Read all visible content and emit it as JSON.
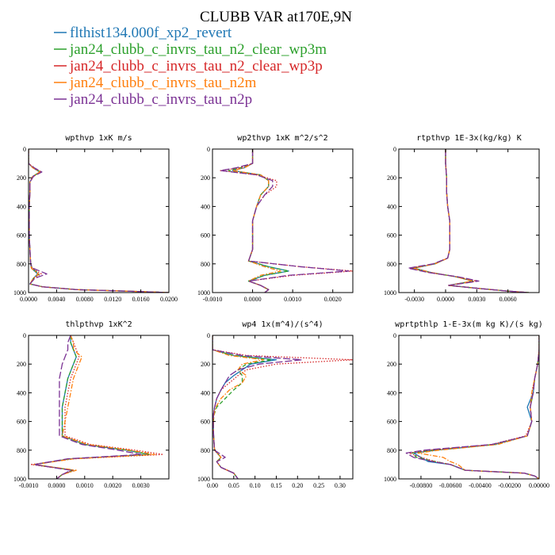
{
  "figure": {
    "title": "CLUBB VAR at170E,9N"
  },
  "legend": [
    {
      "label": "flthist134.000f_xp2_revert",
      "color": "#1f77b4",
      "dash": "solid"
    },
    {
      "label": "jan24_clubb_c_invrs_tau_n2_clear_wp3m",
      "color": "#2ca02c",
      "dash": "dashed"
    },
    {
      "label": "jan24_clubb_c_invrs_tau_n2_clear_wp3p",
      "color": "#d62728",
      "dash": "dotted"
    },
    {
      "label": "jan24_clubb_c_invrs_tau_n2m",
      "color": "#ff7f0e",
      "dash": "dashdot"
    },
    {
      "label": "jan24_clubb_c_invrs_tau_n2p",
      "color": "#7b3294",
      "dash": "longdash"
    }
  ],
  "chart_data": [
    {
      "type": "line",
      "title": "wpthvp  1xK m/s",
      "xlim": [
        0,
        0.02
      ],
      "ylim": [
        1000,
        0
      ],
      "xticks": [
        "0.0000",
        "0.0040",
        "0.0080",
        "0.0120",
        "0.0160",
        "0.0200"
      ],
      "yticks": [
        "0",
        "200",
        "400",
        "600",
        "800",
        "1000"
      ],
      "y": [
        0,
        100,
        130,
        160,
        190,
        230,
        300,
        400,
        500,
        600,
        700,
        800,
        830,
        870,
        900,
        940,
        960,
        980,
        990,
        1000
      ],
      "series": [
        {
          "name": "flthist134.000f_xp2_revert",
          "values": [
            0,
            0,
            0.0006,
            0.0016,
            0.0006,
            0.0002,
            0.0002,
            0.0001,
            0.0001,
            0.0001,
            0.0002,
            0.0003,
            0.0004,
            0.0013,
            0.0007,
            0.0002,
            0.002,
            0.007,
            0.014,
            0.02
          ]
        },
        {
          "name": "jan24_clubb_c_invrs_tau_n2_clear_wp3m",
          "values": [
            0,
            0,
            0.0007,
            0.0017,
            0.0006,
            0.0002,
            0.0002,
            0.0001,
            0.0001,
            0.0001,
            0.0002,
            0.0003,
            0.0005,
            0.0015,
            0.0007,
            0.0002,
            0.002,
            0.007,
            0.014,
            0.02
          ]
        },
        {
          "name": "jan24_clubb_c_invrs_tau_n2_clear_wp3p",
          "values": [
            0,
            0,
            0.0007,
            0.0018,
            0.0007,
            0.0002,
            0.0002,
            0.0001,
            0.0001,
            0.0001,
            0.0002,
            0.0003,
            0.0005,
            0.0018,
            0.0008,
            0.0002,
            0.002,
            0.007,
            0.014,
            0.02
          ]
        },
        {
          "name": "jan24_clubb_c_invrs_tau_n2m",
          "values": [
            0,
            0,
            0.0006,
            0.0016,
            0.0006,
            0.0002,
            0.0002,
            0.0001,
            0.0001,
            0.0001,
            0.0002,
            0.0003,
            0.0004,
            0.0014,
            0.0007,
            0.0002,
            0.002,
            0.007,
            0.014,
            0.02
          ]
        },
        {
          "name": "jan24_clubb_c_invrs_tau_n2p",
          "values": [
            0,
            0,
            0.0008,
            0.0019,
            0.0007,
            0.0002,
            0.0002,
            0.0001,
            0.0001,
            0.0001,
            0.0002,
            0.0003,
            0.0006,
            0.0026,
            0.0009,
            0.0002,
            0.002,
            0.007,
            0.014,
            0.02
          ]
        }
      ]
    },
    {
      "type": "line",
      "title": "wp2thvp  1xK m^2/s^2",
      "xlim": [
        -0.001,
        0.0025
      ],
      "ylim": [
        1000,
        0
      ],
      "xticks": [
        "-0.0010",
        "0.0000",
        "0.0010",
        "0.0020"
      ],
      "yticks": [
        "0",
        "200",
        "400",
        "600",
        "800",
        "1000"
      ],
      "y": [
        0,
        100,
        130,
        150,
        180,
        220,
        260,
        320,
        400,
        500,
        600,
        700,
        780,
        820,
        850,
        880,
        920,
        950,
        980,
        1000
      ],
      "series": [
        {
          "name": "flthist134.000f_xp2_revert",
          "values": [
            0,
            0,
            -0.0002,
            -0.0005,
            0.0002,
            0.0004,
            0.0004,
            0.0002,
            0.0001,
            0.0,
            0.0,
            0.0,
            -0.0001,
            0.0004,
            0.0009,
            0.0003,
            -0.0001,
            0.0002,
            0.0004,
            0.0003
          ]
        },
        {
          "name": "jan24_clubb_c_invrs_tau_n2_clear_wp3m",
          "values": [
            0,
            0,
            -0.0003,
            -0.0006,
            0.0002,
            0.0004,
            0.0004,
            0.0002,
            0.0001,
            0.0,
            0.0,
            0.0,
            -0.0001,
            0.0004,
            0.0009,
            0.0003,
            -0.0001,
            0.0002,
            0.0004,
            0.0003
          ]
        },
        {
          "name": "jan24_clubb_c_invrs_tau_n2_clear_wp3p",
          "values": [
            0,
            0,
            -0.0003,
            -0.0008,
            0.0001,
            0.0006,
            0.0006,
            0.0003,
            0.0001,
            0.0,
            0.0,
            0.0,
            -0.0001,
            0.0012,
            0.0025,
            0.001,
            -0.0001,
            0.0002,
            0.0004,
            0.0003
          ]
        },
        {
          "name": "jan24_clubb_c_invrs_tau_n2m",
          "values": [
            0,
            0,
            -0.0002,
            -0.0005,
            0.0002,
            0.0004,
            0.0004,
            0.0002,
            0.0001,
            0.0,
            0.0,
            0.0,
            -0.0001,
            0.0003,
            0.0007,
            0.0002,
            -0.0001,
            0.0002,
            0.0004,
            0.0003
          ]
        },
        {
          "name": "jan24_clubb_c_invrs_tau_n2p",
          "values": [
            0,
            0,
            -0.0004,
            -0.0008,
            0.0001,
            0.0005,
            0.0005,
            0.0003,
            0.0001,
            0.0,
            0.0,
            0.0,
            -0.0001,
            0.0012,
            0.0024,
            0.0009,
            -0.0001,
            0.0002,
            0.0004,
            0.0003
          ]
        }
      ]
    },
    {
      "type": "line",
      "title": "rtpthvp  1E-3x(kg/kg) K",
      "xlim": [
        -0.0045,
        0.009
      ],
      "ylim": [
        1000,
        0
      ],
      "xticks": [
        "-0.0030",
        "0.0000",
        "0.0030",
        "0.0060"
      ],
      "yticks": [
        "0",
        "200",
        "400",
        "600",
        "800",
        "1000"
      ],
      "y": [
        0,
        100,
        200,
        300,
        400,
        500,
        600,
        700,
        760,
        800,
        830,
        860,
        890,
        920,
        950,
        970,
        990,
        1000
      ],
      "series": [
        {
          "name": "flthist134.000f_xp2_revert",
          "values": [
            0,
            0,
            0.0001,
            0.0001,
            0.0002,
            0.0004,
            0.0004,
            0.0004,
            0.0002,
            -0.001,
            -0.003,
            -0.0014,
            0.001,
            0.0026,
            0.0003,
            0.003,
            0.006,
            0.008
          ]
        },
        {
          "name": "jan24_clubb_c_invrs_tau_n2_clear_wp3m",
          "values": [
            0,
            0,
            0.0001,
            0.0001,
            0.0002,
            0.0004,
            0.0004,
            0.0004,
            0.0002,
            -0.0011,
            -0.0032,
            -0.0015,
            0.001,
            0.0027,
            0.0003,
            0.003,
            0.006,
            0.008
          ]
        },
        {
          "name": "jan24_clubb_c_invrs_tau_n2_clear_wp3p",
          "values": [
            0,
            0,
            0.0001,
            0.0001,
            0.0002,
            0.0004,
            0.0004,
            0.0004,
            0.0002,
            -0.0011,
            -0.0034,
            -0.0016,
            0.0011,
            0.003,
            0.0003,
            0.003,
            0.006,
            0.008
          ]
        },
        {
          "name": "jan24_clubb_c_invrs_tau_n2m",
          "values": [
            0,
            0,
            0.0001,
            0.0001,
            0.0002,
            0.0004,
            0.0004,
            0.0004,
            0.0002,
            -0.001,
            -0.0031,
            -0.0014,
            0.001,
            0.0026,
            0.0003,
            0.003,
            0.006,
            0.008
          ]
        },
        {
          "name": "jan24_clubb_c_invrs_tau_n2p",
          "values": [
            0,
            0,
            0.0001,
            0.0001,
            0.0002,
            0.0004,
            0.0004,
            0.0004,
            0.0002,
            -0.0012,
            -0.0036,
            -0.0017,
            0.0012,
            0.0032,
            0.0003,
            0.003,
            0.006,
            0.008
          ]
        }
      ]
    },
    {
      "type": "line",
      "title": "thlpthvp  1xK^2",
      "xlim": [
        -0.001,
        0.004
      ],
      "ylim": [
        1000,
        0
      ],
      "xticks": [
        "-0.0010",
        "0.0000",
        "0.0010",
        "0.0020",
        "0.0030"
      ],
      "yticks": [
        "0",
        "200",
        "400",
        "600",
        "800",
        "1000"
      ],
      "y": [
        0,
        50,
        100,
        150,
        200,
        300,
        400,
        500,
        600,
        700,
        760,
        800,
        830,
        860,
        900,
        940,
        970,
        1000
      ],
      "series": [
        {
          "name": "flthist134.000f_xp2_revert",
          "values": [
            0.0005,
            0.0005,
            0.0006,
            0.0007,
            0.0006,
            0.0004,
            0.0003,
            0.0002,
            0.0002,
            0.0002,
            0.001,
            0.0025,
            0.0033,
            0.0005,
            -0.0008,
            0.0006,
            0.0002,
            0.0
          ]
        },
        {
          "name": "jan24_clubb_c_invrs_tau_n2_clear_wp3m",
          "values": [
            0.0005,
            0.0005,
            0.0006,
            0.0007,
            0.0006,
            0.0004,
            0.0003,
            0.0002,
            0.0002,
            0.0002,
            0.001,
            0.0025,
            0.0033,
            0.0005,
            -0.0008,
            0.0006,
            0.0002,
            0.0
          ]
        },
        {
          "name": "jan24_clubb_c_invrs_tau_n2_clear_wp3p",
          "values": [
            0.0005,
            0.0006,
            0.0007,
            0.0008,
            0.0007,
            0.0005,
            0.0004,
            0.0003,
            0.0003,
            0.0003,
            0.0012,
            0.0028,
            0.0038,
            0.0006,
            -0.0009,
            0.0006,
            0.0002,
            0.0
          ]
        },
        {
          "name": "jan24_clubb_c_invrs_tau_n2m",
          "values": [
            0.0005,
            0.0006,
            0.0006,
            0.0009,
            0.0008,
            0.0006,
            0.0005,
            0.0004,
            0.0003,
            0.0002,
            0.0011,
            0.0026,
            0.0035,
            0.0006,
            -0.0008,
            0.0007,
            0.0002,
            0.0
          ]
        },
        {
          "name": "jan24_clubb_c_invrs_tau_n2p",
          "values": [
            0.0005,
            0.0004,
            0.0004,
            0.0003,
            0.0002,
            0.0001,
            0.0001,
            0.0001,
            0.0001,
            0.0001,
            0.0009,
            0.0022,
            0.003,
            0.0004,
            -0.0008,
            0.0005,
            0.0002,
            0.0
          ]
        }
      ]
    },
    {
      "type": "line",
      "title": "wp4  1x(m^4)/(s^4)",
      "xlim": [
        0,
        0.33
      ],
      "ylim": [
        1000,
        0
      ],
      "xticks": [
        "0.00",
        "0.05",
        "0.10",
        "0.15",
        "0.20",
        "0.25",
        "0.30"
      ],
      "yticks": [
        "0",
        "200",
        "400",
        "600",
        "800",
        "1000"
      ],
      "y": [
        0,
        100,
        140,
        170,
        200,
        240,
        280,
        330,
        380,
        440,
        500,
        560,
        640,
        720,
        800,
        850,
        880,
        920,
        960,
        1000
      ],
      "series": [
        {
          "name": "flthist134.000f_xp2_revert",
          "values": [
            0.0,
            0.0,
            0.05,
            0.15,
            0.09,
            0.07,
            0.05,
            0.03,
            0.02,
            0.01,
            0.005,
            0.002,
            0.002,
            0.003,
            0.005,
            0.02,
            0.01,
            0.02,
            0.05,
            0.06
          ]
        },
        {
          "name": "jan24_clubb_c_invrs_tau_n2_clear_wp3m",
          "values": [
            0.0,
            0.0,
            0.05,
            0.14,
            0.08,
            0.06,
            0.07,
            0.07,
            0.05,
            0.03,
            0.01,
            0.003,
            0.002,
            0.003,
            0.005,
            0.02,
            0.01,
            0.02,
            0.05,
            0.06
          ]
        },
        {
          "name": "jan24_clubb_c_invrs_tau_n2_clear_wp3p",
          "values": [
            0.0,
            0.0,
            0.08,
            0.33,
            0.15,
            0.08,
            0.06,
            0.04,
            0.02,
            0.01,
            0.005,
            0.002,
            0.002,
            0.003,
            0.005,
            0.02,
            0.01,
            0.02,
            0.05,
            0.06
          ]
        },
        {
          "name": "jan24_clubb_c_invrs_tau_n2m",
          "values": [
            0.0,
            0.0,
            0.04,
            0.12,
            0.07,
            0.06,
            0.08,
            0.07,
            0.04,
            0.02,
            0.008,
            0.003,
            0.002,
            0.003,
            0.005,
            0.02,
            0.01,
            0.02,
            0.05,
            0.06
          ]
        },
        {
          "name": "jan24_clubb_c_invrs_tau_n2p",
          "values": [
            0.0,
            0.0,
            0.07,
            0.21,
            0.11,
            0.06,
            0.04,
            0.03,
            0.02,
            0.01,
            0.005,
            0.002,
            0.002,
            0.003,
            0.005,
            0.03,
            0.01,
            0.02,
            0.05,
            0.06
          ]
        }
      ]
    },
    {
      "type": "line",
      "title": "wprtpthlp  1-E-3x(m kg K)/(s kg)",
      "xlim": [
        -0.0095,
        0.0
      ],
      "ylim": [
        1000,
        0
      ],
      "xticks": [
        "-0.00800",
        "-0.00600",
        "-0.00400",
        "-0.00200",
        "0.00000"
      ],
      "yticks": [
        "0",
        "200",
        "400",
        "600",
        "800",
        "1000"
      ],
      "y": [
        0,
        100,
        200,
        300,
        400,
        500,
        600,
        700,
        760,
        800,
        820,
        850,
        880,
        900,
        940,
        960,
        980,
        1000
      ],
      "series": [
        {
          "name": "flthist134.000f_xp2_revert",
          "values": [
            0,
            0,
            -0.0001,
            -0.0003,
            -0.0004,
            -0.0008,
            -0.0005,
            -0.0008,
            -0.003,
            -0.007,
            -0.0085,
            -0.008,
            -0.0075,
            -0.006,
            -0.005,
            -0.001,
            -0.0003,
            0.0
          ]
        },
        {
          "name": "jan24_clubb_c_invrs_tau_n2_clear_wp3m",
          "values": [
            0,
            0,
            -0.0001,
            -0.0003,
            -0.0004,
            -0.0006,
            -0.0005,
            -0.0008,
            -0.003,
            -0.0072,
            -0.0086,
            -0.0083,
            -0.007,
            -0.006,
            -0.005,
            -0.001,
            -0.0003,
            0.0
          ]
        },
        {
          "name": "jan24_clubb_c_invrs_tau_n2_clear_wp3p",
          "values": [
            0,
            0,
            -0.0001,
            -0.0003,
            -0.0005,
            -0.0006,
            -0.0005,
            -0.0009,
            -0.0032,
            -0.0075,
            -0.0088,
            -0.008,
            -0.007,
            -0.006,
            -0.005,
            -0.001,
            -0.0003,
            0.0
          ]
        },
        {
          "name": "jan24_clubb_c_invrs_tau_n2m",
          "values": [
            0,
            0,
            -0.0001,
            -0.0003,
            -0.0005,
            -0.0006,
            -0.0005,
            -0.0008,
            -0.0028,
            -0.0068,
            -0.0082,
            -0.0065,
            -0.006,
            -0.0055,
            -0.005,
            -0.001,
            -0.0003,
            0.0
          ]
        },
        {
          "name": "jan24_clubb_c_invrs_tau_n2p",
          "values": [
            0,
            0,
            -0.0001,
            -0.0003,
            -0.0004,
            -0.0006,
            -0.0005,
            -0.0008,
            -0.0032,
            -0.0078,
            -0.009,
            -0.0085,
            -0.0072,
            -0.006,
            -0.005,
            -0.001,
            -0.0003,
            0.0
          ]
        }
      ]
    }
  ]
}
